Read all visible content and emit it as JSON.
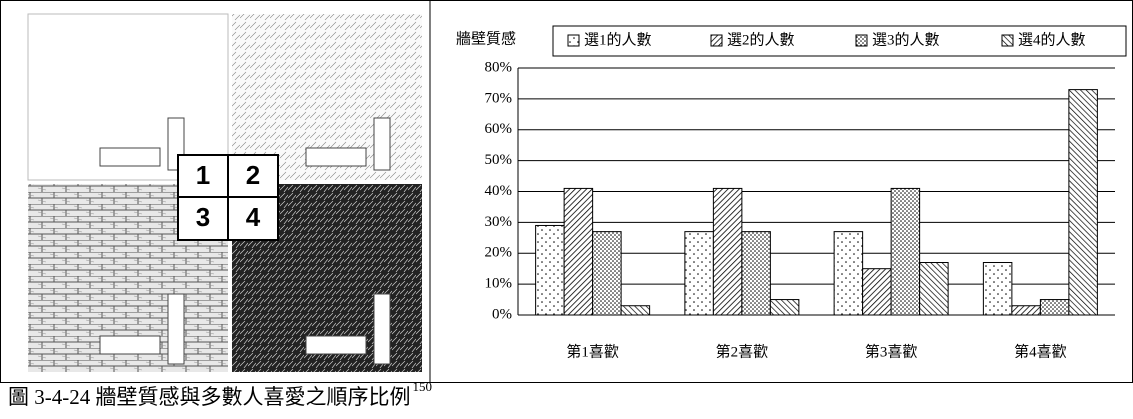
{
  "image_labels": [
    "1",
    "2",
    "3",
    "4"
  ],
  "caption": {
    "text": "圖 3-4-24 牆壁質感與多數人喜愛之順序比例",
    "ref": "150"
  },
  "chart_data": {
    "type": "bar",
    "legend_title": "牆壁質感",
    "categories": [
      "第1喜歡",
      "第2喜歡",
      "第3喜歡",
      "第4喜歡"
    ],
    "series": [
      {
        "name": "選1的人數",
        "color": "#ffffff",
        "pattern": "sparse-dots",
        "values": [
          29,
          27,
          27,
          17
        ]
      },
      {
        "name": "選2的人數",
        "color": "#ffffff",
        "pattern": "hatch-forward",
        "values": [
          41,
          41,
          15,
          3
        ]
      },
      {
        "name": "選3的人數",
        "color": "#ffffff",
        "pattern": "dense-dots",
        "values": [
          27,
          27,
          41,
          5
        ]
      },
      {
        "name": "選4的人數",
        "color": "#ffffff",
        "pattern": "hatch-back",
        "values": [
          3,
          5,
          17,
          73
        ]
      }
    ],
    "ylim": [
      0,
      80
    ],
    "yticks": [
      {
        "value": 0,
        "label": "0%"
      },
      {
        "value": 10,
        "label": "10%"
      },
      {
        "value": 20,
        "label": "20%"
      },
      {
        "value": 30,
        "label": "30%"
      },
      {
        "value": 40,
        "label": "40%"
      },
      {
        "value": 50,
        "label": "50%"
      },
      {
        "value": 60,
        "label": "60%"
      },
      {
        "value": 70,
        "label": "70%"
      },
      {
        "value": 80,
        "label": "80%"
      }
    ],
    "grid": true
  }
}
